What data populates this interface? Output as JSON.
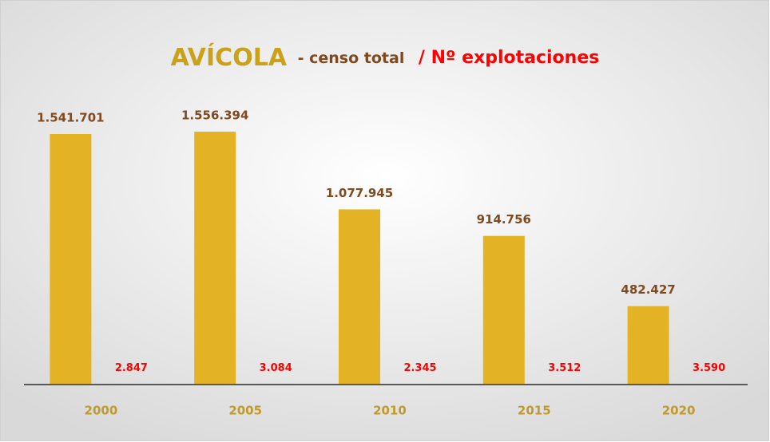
{
  "chart_data": {
    "type": "bar",
    "title_parts": [
      "AVÍCOLA",
      "- censo total",
      "/ Nº explotaciones"
    ],
    "title_colors": [
      "#c9a11a",
      "#7f4a1f",
      "#ff0000"
    ],
    "categories": [
      "2000",
      "2005",
      "2010",
      "2015",
      "2020"
    ],
    "series": [
      {
        "color": "#e3b325",
        "label_color": "#7f4a1f",
        "values": [
          1541701,
          1556394,
          1077945,
          914756,
          482427
        ],
        "value_labels": [
          "1.541.701",
          "1.556.394",
          "1.077.945",
          "914.756",
          "482.427"
        ]
      },
      {
        "color": "#e3b325",
        "label_color": "#ff0000",
        "values": [
          2847,
          3084,
          2345,
          3512,
          3590
        ],
        "value_labels": [
          "2.847",
          "3.084",
          "2.345",
          "3.512",
          "3.590"
        ]
      }
    ]
  }
}
